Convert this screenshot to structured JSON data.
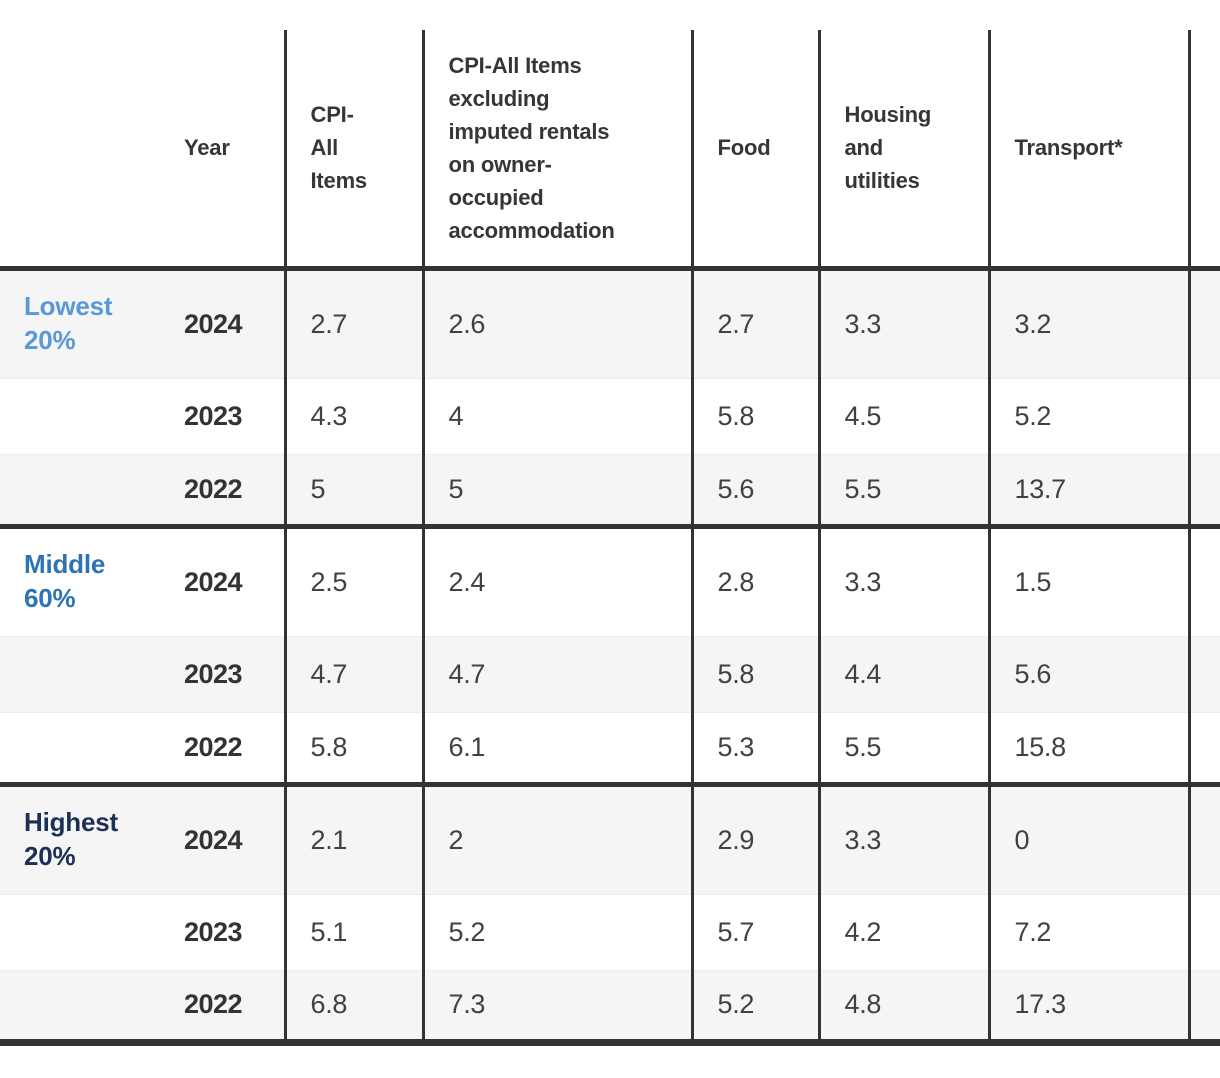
{
  "table": {
    "display_headers": [
      "Year",
      "CPI-\nAll\nItems",
      "CPI-All Items\nexcluding\nimputed rentals\non owner-\noccupied\naccommodation",
      "Food",
      "Housing\nand\nutilities",
      "Transport*"
    ],
    "group_labels": [
      "Lowest\n20%",
      "Middle\n60%",
      "Highest\n20%"
    ],
    "group_colors": [
      "#5a98d7",
      "#2e74b5",
      "#1b3054"
    ],
    "border_color": "#333333",
    "stripe_color": "#f5f5f6"
  },
  "chart_data": {
    "type": "table",
    "title": "",
    "columns": [
      "",
      "Year",
      "CPI-All Items",
      "CPI-All Items excluding imputed rentals on owner-occupied accommodation",
      "Food",
      "Housing and utilities",
      "Transport*"
    ],
    "rows": [
      [
        "Lowest 20%",
        2024,
        2.7,
        2.6,
        2.7,
        3.3,
        3.2
      ],
      [
        "Lowest 20%",
        2023,
        4.3,
        4,
        5.8,
        4.5,
        5.2
      ],
      [
        "Lowest 20%",
        2022,
        5,
        5,
        5.6,
        5.5,
        13.7
      ],
      [
        "Middle 60%",
        2024,
        2.5,
        2.4,
        2.8,
        3.3,
        1.5
      ],
      [
        "Middle 60%",
        2023,
        4.7,
        4.7,
        5.8,
        4.4,
        5.6
      ],
      [
        "Middle 60%",
        2022,
        5.8,
        6.1,
        5.3,
        5.5,
        15.8
      ],
      [
        "Highest 20%",
        2024,
        2.1,
        2,
        2.9,
        3.3,
        0
      ],
      [
        "Highest 20%",
        2023,
        5.1,
        5.2,
        5.7,
        4.2,
        7.2
      ],
      [
        "Highest 20%",
        2022,
        6.8,
        7.3,
        5.2,
        4.8,
        17.3
      ]
    ],
    "layout_hints": {
      "row_groups": [
        "Lowest 20%",
        "Middle 60%",
        "Highest 20%"
      ],
      "striped_rows": true,
      "thick_borders_between_groups": true,
      "rightmost_column_cut_off": true
    }
  }
}
